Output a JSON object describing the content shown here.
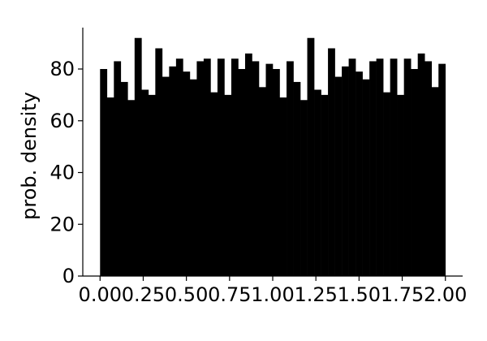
{
  "chart_data": {
    "type": "bar",
    "title": "",
    "xlabel": "",
    "ylabel": "prob. density",
    "xlim": [
      -0.1,
      2.1
    ],
    "ylim": [
      0,
      96
    ],
    "xticks": [
      0.0,
      0.25,
      0.5,
      0.75,
      1.0,
      1.25,
      1.5,
      1.75,
      2.0
    ],
    "xtick_labels": [
      "0.00",
      "0.25",
      "0.50",
      "0.75",
      "1.00",
      "1.25",
      "1.50",
      "1.75",
      "2.00"
    ],
    "yticks": [
      0,
      20,
      40,
      60,
      80
    ],
    "ytick_labels": [
      "0",
      "20",
      "40",
      "60",
      "80"
    ],
    "bin_start": 0.0,
    "bin_width": 0.04,
    "values": [
      80,
      69,
      83,
      75,
      68,
      92,
      72,
      70,
      88,
      77,
      81,
      84,
      79,
      76,
      83,
      84,
      71,
      84,
      70,
      84,
      80,
      86,
      83,
      73,
      82,
      80,
      69,
      83,
      75,
      68,
      92,
      72,
      70,
      88,
      77,
      81,
      84,
      79,
      76,
      83,
      84,
      71,
      84,
      70,
      84,
      80,
      86,
      83,
      73,
      82
    ],
    "bar_color": "#000000",
    "grid": false
  }
}
